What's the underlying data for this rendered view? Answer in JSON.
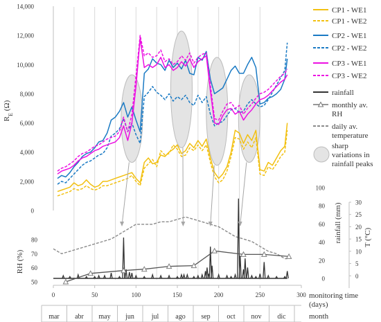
{
  "chart_data": {
    "type": "line",
    "colors": {
      "cp1": "#F2C010",
      "cp2": "#1A7AC4",
      "cp3": "#EC10E2",
      "rainfall": "#333333",
      "rh": "#7f7f7f",
      "temperature": "#8a8a8a",
      "ellipse_fill": "#e4e4e4",
      "ellipse_stroke": "#bcbcbc",
      "grid": "#d9d9d9"
    },
    "x_axis": {
      "label_line1": "monitoring time",
      "label_line2": "(days)",
      "range": [
        0,
        300
      ],
      "ticks": [
        "0",
        "50",
        "100",
        "150",
        "200",
        "250",
        "300"
      ],
      "gridlines": [
        25,
        50,
        75,
        100,
        125,
        150,
        175,
        200,
        225,
        250
      ]
    },
    "month_axis": {
      "label": "month",
      "months": [
        "mar",
        "abr",
        "may",
        "jun",
        "jul",
        "ago",
        "sep",
        "oct",
        "nov",
        "dic"
      ]
    },
    "top_panel": {
      "y_label_main": "R",
      "y_label_sub": "E",
      "y_label_unit": " (Ω)",
      "ylim": [
        0,
        14000
      ],
      "y_ticks": [
        "0",
        "2,000",
        "4,000",
        "6,000",
        "8,000",
        "10,000",
        "12,000",
        "14,000"
      ],
      "series": [
        {
          "name": "CP1 - WE1",
          "key": "cp1",
          "dashed": false,
          "x": [
            5,
            10,
            15,
            20,
            25,
            30,
            35,
            40,
            45,
            50,
            55,
            60,
            65,
            70,
            75,
            80,
            85,
            90,
            95,
            100,
            105,
            110,
            115,
            120,
            125,
            130,
            135,
            140,
            145,
            150,
            155,
            160,
            165,
            170,
            175,
            180,
            185,
            190,
            195,
            200,
            205,
            210,
            215,
            220,
            225,
            230,
            235,
            240,
            245,
            250,
            255,
            260,
            265,
            270,
            275,
            280,
            283
          ],
          "y": [
            1300,
            1400,
            1500,
            1600,
            1900,
            1700,
            1800,
            2100,
            1800,
            1600,
            1700,
            2000,
            2000,
            2100,
            2200,
            2300,
            2400,
            2500,
            2600,
            2200,
            1900,
            3300,
            3600,
            3200,
            3300,
            3800,
            3700,
            4000,
            4200,
            4500,
            3900,
            4100,
            4600,
            4300,
            4800,
            4400,
            4900,
            3600,
            2600,
            2200,
            2500,
            3000,
            4000,
            5500,
            5300,
            4600,
            5200,
            4800,
            5500,
            2800,
            2700,
            3300,
            3100,
            3600,
            4100,
            4400,
            6000
          ]
        },
        {
          "name": "CP1 - WE2",
          "key": "cp1",
          "dashed": true,
          "x": [
            5,
            10,
            15,
            20,
            25,
            30,
            35,
            40,
            45,
            50,
            55,
            60,
            65,
            70,
            75,
            80,
            85,
            90,
            95,
            100,
            105,
            110,
            115,
            120,
            125,
            130,
            135,
            140,
            145,
            150,
            155,
            160,
            165,
            170,
            175,
            180,
            185,
            190,
            195,
            200,
            205,
            210,
            215,
            220,
            225,
            230,
            235,
            240,
            245,
            250,
            255,
            260,
            265,
            270,
            275,
            280,
            283
          ],
          "y": [
            1000,
            1100,
            1200,
            1300,
            1500,
            1400,
            1500,
            1700,
            1500,
            1400,
            1500,
            1700,
            1700,
            1800,
            1900,
            2000,
            2100,
            2200,
            2400,
            2000,
            1700,
            2900,
            3200,
            3500,
            3000,
            4100,
            3800,
            3900,
            4500,
            4200,
            3700,
            3800,
            4300,
            4100,
            4500,
            4100,
            4500,
            3300,
            2300,
            1900,
            2100,
            2700,
            3700,
            5000,
            4900,
            4200,
            4700,
            4300,
            5000,
            2500,
            2400,
            3000,
            2800,
            3200,
            3700,
            4000,
            5500
          ]
        },
        {
          "name": "CP2 - WE1",
          "key": "cp2",
          "dashed": false,
          "x": [
            5,
            10,
            15,
            20,
            25,
            30,
            35,
            40,
            45,
            50,
            55,
            60,
            65,
            70,
            75,
            80,
            85,
            90,
            95,
            100,
            105,
            110,
            115,
            120,
            125,
            130,
            135,
            140,
            145,
            150,
            155,
            160,
            165,
            170,
            175,
            180,
            185,
            190,
            195,
            200,
            205,
            210,
            215,
            220,
            225,
            230,
            235,
            240,
            245,
            250,
            255,
            260,
            265,
            270,
            275,
            280,
            283
          ],
          "y": [
            2200,
            2400,
            2300,
            2600,
            3000,
            3300,
            3700,
            3900,
            4000,
            4300,
            4700,
            4800,
            5300,
            6200,
            6400,
            6800,
            7400,
            6400,
            7100,
            6200,
            5400,
            9400,
            9700,
            10400,
            10100,
            10000,
            9600,
            10300,
            9800,
            10100,
            9700,
            10300,
            9400,
            9300,
            10500,
            10300,
            10900,
            9000,
            8000,
            8200,
            8400,
            9000,
            9600,
            9900,
            9400,
            9400,
            10000,
            10500,
            9800,
            7300,
            7400,
            7700,
            7800,
            8000,
            8300,
            9000,
            10400
          ]
        },
        {
          "name": "CP2 - WE2",
          "key": "cp2",
          "dashed": true,
          "x": [
            5,
            10,
            15,
            20,
            25,
            30,
            35,
            40,
            45,
            50,
            55,
            60,
            65,
            70,
            75,
            80,
            85,
            90,
            95,
            100,
            105,
            110,
            115,
            120,
            125,
            130,
            135,
            140,
            145,
            150,
            155,
            160,
            165,
            170,
            175,
            180,
            185,
            190,
            195,
            200,
            205,
            210,
            215,
            220,
            225,
            230,
            235,
            240,
            245,
            250,
            255,
            260,
            265,
            270,
            275,
            280,
            283
          ],
          "y": [
            1800,
            2000,
            1900,
            2200,
            2500,
            2800,
            3100,
            3300,
            3400,
            3600,
            3800,
            3900,
            4300,
            5100,
            5300,
            5600,
            6300,
            5400,
            6000,
            5200,
            4600,
            7800,
            8100,
            8500,
            8100,
            7900,
            7600,
            8000,
            7500,
            7800,
            7600,
            7900,
            7400,
            7200,
            7900,
            7400,
            7800,
            6600,
            5800,
            6000,
            6100,
            6500,
            6900,
            7000,
            6700,
            6800,
            7300,
            7600,
            7300,
            7100,
            7200,
            7600,
            8100,
            8600,
            9100,
            9600,
            11500
          ]
        },
        {
          "name": "CP3 - WE1",
          "key": "cp3",
          "dashed": false,
          "x": [
            5,
            10,
            15,
            20,
            25,
            30,
            35,
            40,
            45,
            50,
            55,
            60,
            65,
            70,
            75,
            80,
            85,
            90,
            95,
            100,
            105,
            110,
            115,
            120,
            125,
            130,
            135,
            140,
            145,
            150,
            155,
            160,
            165,
            170,
            175,
            180,
            185,
            190,
            195,
            200,
            205,
            210,
            215,
            220,
            225,
            230,
            235,
            240,
            245,
            250,
            255,
            260,
            265,
            270,
            275,
            280,
            283
          ],
          "y": [
            2500,
            2700,
            2800,
            2900,
            3100,
            3400,
            3600,
            3700,
            3900,
            4100,
            4200,
            4400,
            4500,
            4600,
            4700,
            5000,
            5800,
            4800,
            6000,
            8500,
            11800,
            9800,
            10000,
            9800,
            10000,
            10500,
            9800,
            10000,
            9600,
            9800,
            10200,
            9900,
            10400,
            9800,
            10200,
            10400,
            10600,
            8200,
            6000,
            5900,
            6500,
            6900,
            7000,
            6600,
            6800,
            6200,
            6600,
            6900,
            7300,
            7600,
            7700,
            7900,
            8200,
            8500,
            8800,
            9000,
            9300
          ]
        },
        {
          "name": "CP3 - WE2",
          "key": "cp3",
          "dashed": true,
          "x": [
            5,
            10,
            15,
            20,
            25,
            30,
            35,
            40,
            45,
            50,
            55,
            60,
            65,
            70,
            75,
            80,
            85,
            90,
            95,
            100,
            105,
            110,
            115,
            120,
            125,
            130,
            135,
            140,
            145,
            150,
            155,
            160,
            165,
            170,
            175,
            180,
            185,
            190,
            195,
            200,
            205,
            210,
            215,
            220,
            225,
            230,
            235,
            240,
            245,
            250,
            255,
            260,
            265,
            270,
            275,
            280,
            283
          ],
          "y": [
            2700,
            2900,
            3000,
            3200,
            3400,
            3700,
            3900,
            4000,
            4200,
            4400,
            4500,
            4700,
            4900,
            5000,
            5100,
            5400,
            6400,
            5400,
            6600,
            9200,
            12000,
            10600,
            10800,
            10500,
            10600,
            11000,
            10200,
            10400,
            10000,
            10200,
            10600,
            10300,
            10800,
            10100,
            10500,
            10700,
            10800,
            8600,
            6300,
            6200,
            6800,
            7300,
            7400,
            7000,
            7200,
            6600,
            7000,
            7300,
            7700,
            8000,
            8100,
            8300,
            8600,
            8900,
            9200,
            9400,
            9700
          ]
        }
      ]
    },
    "bottom_panel": {
      "rh": {
        "name": "monthly av. RH",
        "axis_label": "RH (%)",
        "ylim": [
          50,
          80
        ],
        "ticks": [
          "50",
          "60",
          "70",
          "80"
        ],
        "x": [
          15,
          45,
          85,
          110,
          140,
          170,
          195,
          230,
          255,
          285
        ],
        "y": [
          50,
          56,
          58,
          59,
          61,
          61.5,
          72,
          69.5,
          69.5,
          68
        ]
      },
      "rainfall": {
        "name": "rainfall",
        "axis_label": "rainfall (mm)",
        "ylim": [
          0,
          100
        ],
        "ticks": [
          "0",
          "20",
          "40",
          "60",
          "80",
          "100"
        ],
        "x": [
          12,
          20,
          30,
          40,
          50,
          55,
          62,
          70,
          80,
          85,
          88,
          92,
          95,
          100,
          110,
          120,
          130,
          140,
          150,
          155,
          158,
          162,
          170,
          175,
          180,
          184,
          186,
          188,
          190,
          192,
          200,
          210,
          215,
          220,
          224,
          226,
          230,
          232,
          235,
          240,
          245,
          250,
          255,
          260,
          270,
          280,
          283
        ],
        "y": [
          3,
          2,
          4,
          2,
          2,
          3,
          3,
          6,
          2,
          45,
          10,
          7,
          6,
          3,
          2,
          4,
          3,
          3,
          2,
          4,
          4,
          4,
          2,
          3,
          4,
          8,
          12,
          5,
          35,
          14,
          4,
          3,
          2,
          4,
          88,
          25,
          10,
          22,
          12,
          3,
          2,
          5,
          18,
          3,
          2,
          2,
          8
        ]
      },
      "temperature": {
        "name": "daily av. temperature",
        "axis_label": "T (°C)",
        "ylim": [
          -5,
          30
        ],
        "ticks": [
          "0",
          "5",
          "10",
          "15",
          "20",
          "25",
          "30"
        ],
        "x": [
          0,
          10,
          20,
          30,
          40,
          50,
          60,
          70,
          80,
          90,
          100,
          110,
          120,
          130,
          140,
          150,
          160,
          170,
          180,
          190,
          200,
          210,
          220,
          230,
          240,
          250,
          260,
          270,
          280,
          283
        ],
        "y": [
          11,
          9,
          10,
          11,
          12,
          13,
          14,
          15,
          17,
          19,
          21,
          21,
          21,
          22,
          22,
          23,
          24,
          23,
          22,
          21,
          20,
          18,
          16,
          15,
          14,
          12,
          10,
          9,
          7,
          7
        ]
      }
    },
    "legend": [
      {
        "label": "CP1 - WE1",
        "key": "cp1",
        "style": "solid"
      },
      {
        "label": "CP1 - WE2",
        "key": "cp1",
        "style": "dashed"
      },
      {
        "label": "CP2 - WE1",
        "key": "cp2",
        "style": "solid"
      },
      {
        "label": "CP2 - WE2",
        "key": "cp2",
        "style": "dashed"
      },
      {
        "label": "CP3 - WE1",
        "key": "cp3",
        "style": "solid"
      },
      {
        "label": "CP3 - WE2",
        "key": "cp3",
        "style": "dashed"
      },
      {
        "label": "rainfall",
        "key": "rainfall",
        "style": "solid"
      },
      {
        "label": "monthly av.",
        "label2": "RH",
        "key": "rh",
        "style": "triangle"
      },
      {
        "label": "daily av.",
        "label2": "temperature",
        "key": "temperature",
        "style": "dashed"
      },
      {
        "label": "sharp",
        "label2": "variations in",
        "label3": "rainfall peaks",
        "key": "ellipse",
        "style": "circle"
      }
    ],
    "ellipses": [
      {
        "cx": 95,
        "cy": 6300,
        "rx": 13,
        "ry": 3000,
        "target_x": 83
      },
      {
        "cx": 155,
        "cy": 8300,
        "rx": 13,
        "ry": 4000,
        "target_x": 157
      },
      {
        "cx": 198,
        "cy": 6800,
        "rx": 13,
        "ry": 3700,
        "target_x": 190
      },
      {
        "cx": 237,
        "cy": 6300,
        "rx": 13,
        "ry": 3000,
        "target_x": 226
      }
    ]
  }
}
